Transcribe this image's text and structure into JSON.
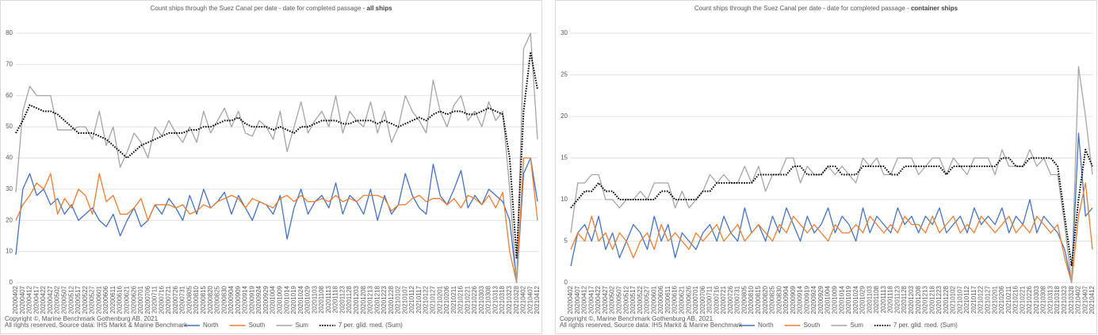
{
  "chart_data": [
    {
      "type": "line",
      "title": "Count ships through the Suez Canal per date - date for completed passage - ",
      "title_bold": "all ships",
      "categories": [
        "20200402",
        "20200407",
        "20200412",
        "20200417",
        "20200422",
        "20200427",
        "20200502",
        "20200507",
        "20200512",
        "20200517",
        "20200522",
        "20200527",
        "20200601",
        "20200606",
        "20200611",
        "20200616",
        "20200621",
        "20200626",
        "20200701",
        "20200706",
        "20200711",
        "20200716",
        "20200721",
        "20200726",
        "20200731",
        "20200805",
        "20200810",
        "20200815",
        "20200820",
        "20200825",
        "20200830",
        "20200904",
        "20200909",
        "20200914",
        "20200919",
        "20200924",
        "20200929",
        "20201004",
        "20201009",
        "20201014",
        "20201019",
        "20201024",
        "20201029",
        "20201103",
        "20201108",
        "20201113",
        "20201118",
        "20201123",
        "20201128",
        "20201203",
        "20201208",
        "20201213",
        "20201218",
        "20201223",
        "20201228",
        "20210102",
        "20210107",
        "20210112",
        "20210117",
        "20210122",
        "20210127",
        "20210201",
        "20210206",
        "20210211",
        "20210216",
        "20210221",
        "20210226",
        "20210303",
        "20210308",
        "20210313",
        "20210318",
        "20210323",
        "20210328",
        "20210402",
        "20210407",
        "20210412"
      ],
      "series": [
        {
          "name": "North",
          "color": "#4472c4",
          "style": "solid",
          "values": [
            9,
            30,
            35,
            28,
            30,
            25,
            27,
            22,
            25,
            20,
            22,
            24,
            20,
            18,
            22,
            15,
            20,
            24,
            18,
            20,
            25,
            22,
            27,
            24,
            20,
            28,
            22,
            30,
            24,
            26,
            29,
            22,
            28,
            24,
            20,
            26,
            25,
            22,
            28,
            14,
            24,
            30,
            22,
            26,
            28,
            24,
            32,
            22,
            28,
            26,
            22,
            30,
            20,
            28,
            22,
            25,
            35,
            28,
            24,
            22,
            38,
            28,
            25,
            30,
            36,
            24,
            28,
            25,
            30,
            28,
            26,
            20,
            0,
            35,
            40,
            26
          ]
        },
        {
          "name": "South",
          "color": "#ed7d31",
          "style": "solid",
          "values": [
            20,
            25,
            28,
            32,
            30,
            35,
            22,
            27,
            24,
            30,
            28,
            22,
            35,
            26,
            28,
            22,
            22,
            24,
            27,
            20,
            25,
            25,
            25,
            24,
            25,
            22,
            23,
            25,
            24,
            26,
            27,
            28,
            27,
            24,
            27,
            26,
            25,
            24,
            27,
            28,
            26,
            28,
            26,
            26,
            27,
            26,
            28,
            26,
            27,
            26,
            28,
            28,
            28,
            27,
            23,
            25,
            25,
            27,
            28,
            26,
            27,
            27,
            25,
            27,
            24,
            28,
            27,
            25,
            28,
            24,
            29,
            10,
            0,
            40,
            40,
            20
          ]
        },
        {
          "name": "Sum",
          "color": "#a5a5a5",
          "style": "solid",
          "values": [
            29,
            55,
            63,
            60,
            60,
            60,
            49,
            49,
            49,
            50,
            50,
            46,
            55,
            44,
            50,
            37,
            42,
            48,
            45,
            40,
            50,
            47,
            52,
            48,
            45,
            50,
            45,
            55,
            48,
            52,
            56,
            50,
            55,
            48,
            47,
            52,
            50,
            46,
            55,
            42,
            50,
            58,
            48,
            52,
            55,
            50,
            60,
            48,
            55,
            52,
            50,
            58,
            48,
            55,
            45,
            50,
            60,
            55,
            52,
            48,
            65,
            55,
            50,
            57,
            60,
            52,
            55,
            50,
            58,
            52,
            55,
            30,
            0,
            75,
            80,
            46
          ]
        },
        {
          "name": "7 per. glid. med. (Sum)",
          "color": "#000000",
          "style": "dotted",
          "values": [
            48,
            52,
            57,
            56,
            55,
            55,
            54,
            52,
            50,
            48,
            48,
            48,
            47,
            46,
            44,
            42,
            40,
            42,
            44,
            45,
            46,
            47,
            48,
            48,
            48,
            49,
            49,
            50,
            50,
            51,
            52,
            52,
            53,
            51,
            50,
            50,
            50,
            49,
            50,
            49,
            48,
            50,
            50,
            51,
            52,
            52,
            52,
            51,
            51,
            52,
            52,
            52,
            51,
            52,
            51,
            50,
            51,
            52,
            53,
            52,
            54,
            55,
            54,
            55,
            55,
            54,
            54,
            55,
            56,
            55,
            54,
            40,
            8,
            55,
            74,
            62
          ]
        }
      ],
      "ylim": [
        0,
        80
      ],
      "yticks": [
        0,
        10,
        20,
        30,
        40,
        50,
        60,
        70,
        80
      ],
      "grid": true,
      "legend": "bottom",
      "notes": [
        "Copyright ©, Marine Benchmark Gothenburg AB, 2021",
        "All rights reserved, Source data: IHS Markit & Marine Benchmark"
      ]
    },
    {
      "type": "line",
      "title": "Count ships through the Suez Canal per date - date for completed passage - ",
      "title_bold": "container ships",
      "categories": [
        "20200402",
        "20200407",
        "20200412",
        "20200417",
        "20200422",
        "20200427",
        "20200502",
        "20200507",
        "20200512",
        "20200517",
        "20200522",
        "20200527",
        "20200601",
        "20200606",
        "20200611",
        "20200616",
        "20200621",
        "20200626",
        "20200701",
        "20200706",
        "20200711",
        "20200716",
        "20200721",
        "20200726",
        "20200731",
        "20200805",
        "20200810",
        "20200815",
        "20200820",
        "20200825",
        "20200830",
        "20200904",
        "20200909",
        "20200914",
        "20200919",
        "20200924",
        "20200929",
        "20201004",
        "20201009",
        "20201014",
        "20201019",
        "20201024",
        "20201029",
        "20201103",
        "20201108",
        "20201113",
        "20201118",
        "20201123",
        "20201128",
        "20201203",
        "20201208",
        "20201213",
        "20201218",
        "20201223",
        "20201228",
        "20210102",
        "20210107",
        "20210112",
        "20210117",
        "20210122",
        "20210127",
        "20210201",
        "20210206",
        "20210211",
        "20210216",
        "20210221",
        "20210226",
        "20210303",
        "20210308",
        "20210313",
        "20210318",
        "20210323",
        "20210328",
        "20210402",
        "20210407",
        "20210412"
      ],
      "series": [
        {
          "name": "North",
          "color": "#4472c4",
          "style": "solid",
          "values": [
            2,
            6,
            7,
            5,
            8,
            4,
            6,
            3,
            5,
            7,
            6,
            4,
            8,
            5,
            7,
            3,
            6,
            5,
            4,
            6,
            7,
            5,
            8,
            6,
            5,
            9,
            6,
            7,
            5,
            8,
            6,
            9,
            7,
            5,
            8,
            6,
            7,
            9,
            6,
            8,
            7,
            5,
            9,
            6,
            8,
            7,
            6,
            9,
            7,
            8,
            6,
            8,
            7,
            9,
            6,
            7,
            8,
            6,
            9,
            7,
            8,
            7,
            9,
            6,
            8,
            7,
            10,
            6,
            8,
            7,
            6,
            4,
            0,
            18,
            8,
            9
          ]
        },
        {
          "name": "South",
          "color": "#ed7d31",
          "style": "solid",
          "values": [
            4,
            6,
            5,
            8,
            5,
            6,
            4,
            6,
            5,
            3,
            5,
            6,
            4,
            7,
            5,
            6,
            5,
            4,
            6,
            5,
            6,
            7,
            5,
            6,
            7,
            5,
            6,
            7,
            6,
            5,
            7,
            6,
            8,
            7,
            6,
            7,
            6,
            5,
            7,
            6,
            6,
            7,
            6,
            8,
            7,
            6,
            7,
            6,
            8,
            7,
            7,
            6,
            8,
            6,
            7,
            8,
            6,
            7,
            6,
            8,
            7,
            6,
            7,
            8,
            6,
            7,
            6,
            8,
            7,
            6,
            7,
            3,
            0,
            8,
            12,
            4
          ]
        },
        {
          "name": "Sum",
          "color": "#a5a5a5",
          "style": "solid",
          "values": [
            6,
            12,
            12,
            13,
            13,
            10,
            10,
            9,
            10,
            10,
            11,
            10,
            12,
            12,
            12,
            9,
            11,
            9,
            10,
            11,
            13,
            12,
            13,
            12,
            12,
            14,
            12,
            14,
            11,
            13,
            13,
            15,
            15,
            12,
            14,
            13,
            13,
            14,
            13,
            14,
            13,
            12,
            15,
            14,
            15,
            13,
            13,
            15,
            15,
            15,
            13,
            14,
            15,
            15,
            13,
            15,
            14,
            13,
            15,
            15,
            15,
            13,
            16,
            14,
            14,
            14,
            16,
            14,
            15,
            13,
            13,
            7,
            0,
            26,
            20,
            13
          ]
        },
        {
          "name": "7 per. glid. med. (Sum)",
          "color": "#000000",
          "style": "dotted",
          "values": [
            9,
            10,
            11,
            11,
            12,
            11,
            11,
            10,
            10,
            10,
            10,
            10,
            10,
            11,
            11,
            10,
            10,
            10,
            10,
            11,
            11,
            12,
            12,
            12,
            12,
            12,
            12,
            13,
            13,
            13,
            13,
            13,
            14,
            14,
            13,
            13,
            13,
            14,
            14,
            13,
            13,
            13,
            14,
            14,
            14,
            14,
            13,
            13,
            14,
            14,
            14,
            14,
            14,
            14,
            13,
            14,
            14,
            14,
            14,
            14,
            14,
            14,
            15,
            15,
            14,
            14,
            15,
            15,
            15,
            15,
            14,
            8,
            2,
            10,
            16,
            14
          ]
        }
      ],
      "ylim": [
        0,
        30
      ],
      "yticks": [
        0,
        5,
        10,
        15,
        20,
        25,
        30
      ],
      "grid": true,
      "legend": "bottom",
      "notes": [
        "Copyright ©, Marine Benchmark Gothenburg AB, 2021",
        "All rights reserved, Source data: IHS Markit & Marine Benchmark"
      ]
    }
  ]
}
